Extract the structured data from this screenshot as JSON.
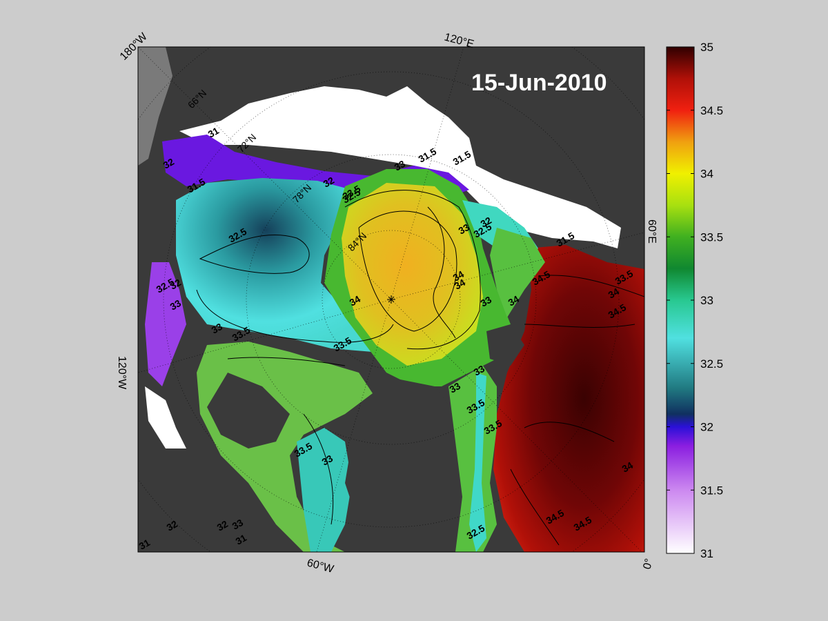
{
  "figure": {
    "date": "15-Jun-2010",
    "colors": {
      "background": "#cccccc",
      "land": "#3a3a3a",
      "ice": "#ffffff",
      "ocean_nodata": "#808080",
      "frame": "#000000"
    }
  },
  "map": {
    "edge_labels": {
      "top_left": "180°W",
      "top": "120°E",
      "right": "60°E",
      "left": "120°W",
      "bottom": "60°W",
      "bottom_right": "0°"
    },
    "latitude_labels": [
      "66°N",
      "72°N",
      "78°N",
      "84°N"
    ],
    "contour_labels": [
      "32.5",
      "32",
      "32.5",
      "33.5",
      "33",
      "31.5",
      "33",
      "32",
      "31.5",
      "33.5",
      "34",
      "34",
      "34",
      "34",
      "34.5",
      "34",
      "33.5",
      "34.5",
      "33",
      "33",
      "33.5",
      "33",
      "33.5",
      "32.5",
      "33",
      "33.5",
      "33.5",
      "34.5",
      "34",
      "32.5",
      "34.5",
      "33",
      "32",
      "31",
      "31.5",
      "32",
      "33",
      "32.5",
      "31.5",
      "32",
      "31",
      "32",
      "33",
      "31"
    ]
  },
  "colorbar": {
    "min": 31,
    "max": 35,
    "ticks": [
      "35",
      "34.5",
      "34",
      "33.5",
      "33",
      "32.5",
      "32",
      "31.5",
      "31"
    ],
    "stops": [
      {
        "value": 31.0,
        "color": "#ffffff"
      },
      {
        "value": 31.5,
        "color": "#cc88f0"
      },
      {
        "value": 31.85,
        "color": "#8a1ee0"
      },
      {
        "value": 32.0,
        "color": "#2a10d8"
      },
      {
        "value": 32.1,
        "color": "#103060"
      },
      {
        "value": 32.3,
        "color": "#207880"
      },
      {
        "value": 32.7,
        "color": "#50e0e0"
      },
      {
        "value": 33.0,
        "color": "#28c890"
      },
      {
        "value": 33.25,
        "color": "#108830"
      },
      {
        "value": 33.5,
        "color": "#40b020"
      },
      {
        "value": 33.75,
        "color": "#a8e010"
      },
      {
        "value": 34.0,
        "color": "#f0f000"
      },
      {
        "value": 34.25,
        "color": "#f0a010"
      },
      {
        "value": 34.5,
        "color": "#f02010"
      },
      {
        "value": 34.75,
        "color": "#b01008"
      },
      {
        "value": 35.0,
        "color": "#300000"
      }
    ]
  }
}
